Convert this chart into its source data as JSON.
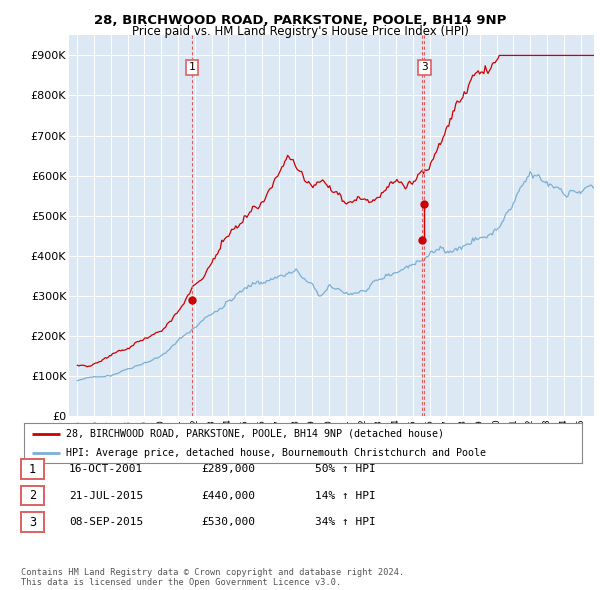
{
  "title_line1": "28, BIRCHWOOD ROAD, PARKSTONE, POOLE, BH14 9NP",
  "title_line2": "Price paid vs. HM Land Registry's House Price Index (HPI)",
  "ylim": [
    0,
    950000
  ],
  "yticks": [
    0,
    100000,
    200000,
    300000,
    400000,
    500000,
    600000,
    700000,
    800000,
    900000
  ],
  "ytick_labels": [
    "£0",
    "£100K",
    "£200K",
    "£300K",
    "£400K",
    "£500K",
    "£600K",
    "£700K",
    "£800K",
    "£900K"
  ],
  "background_color": "#dce9f5",
  "grid_color": "#ffffff",
  "transactions": [
    {
      "date": 2001.83,
      "price": 289000,
      "label": "1"
    },
    {
      "date": 2015.54,
      "price": 440000,
      "label": "2"
    },
    {
      "date": 2015.69,
      "price": 530000,
      "label": "3"
    }
  ],
  "transaction_table": [
    {
      "num": "1",
      "date": "16-OCT-2001",
      "price": "£289,000",
      "pct": "50% ↑ HPI"
    },
    {
      "num": "2",
      "date": "21-JUL-2015",
      "price": "£440,000",
      "pct": "14% ↑ HPI"
    },
    {
      "num": "3",
      "date": "08-SEP-2015",
      "price": "£530,000",
      "pct": "34% ↑ HPI"
    }
  ],
  "legend_entries": [
    "28, BIRCHWOOD ROAD, PARKSTONE, POOLE, BH14 9NP (detached house)",
    "HPI: Average price, detached house, Bournemouth Christchurch and Poole"
  ],
  "footer": "Contains HM Land Registry data © Crown copyright and database right 2024.\nThis data is licensed under the Open Government Licence v3.0.",
  "hpi_color": "#7bafd4",
  "price_color": "#cc0000",
  "vline_color": "#e06060"
}
